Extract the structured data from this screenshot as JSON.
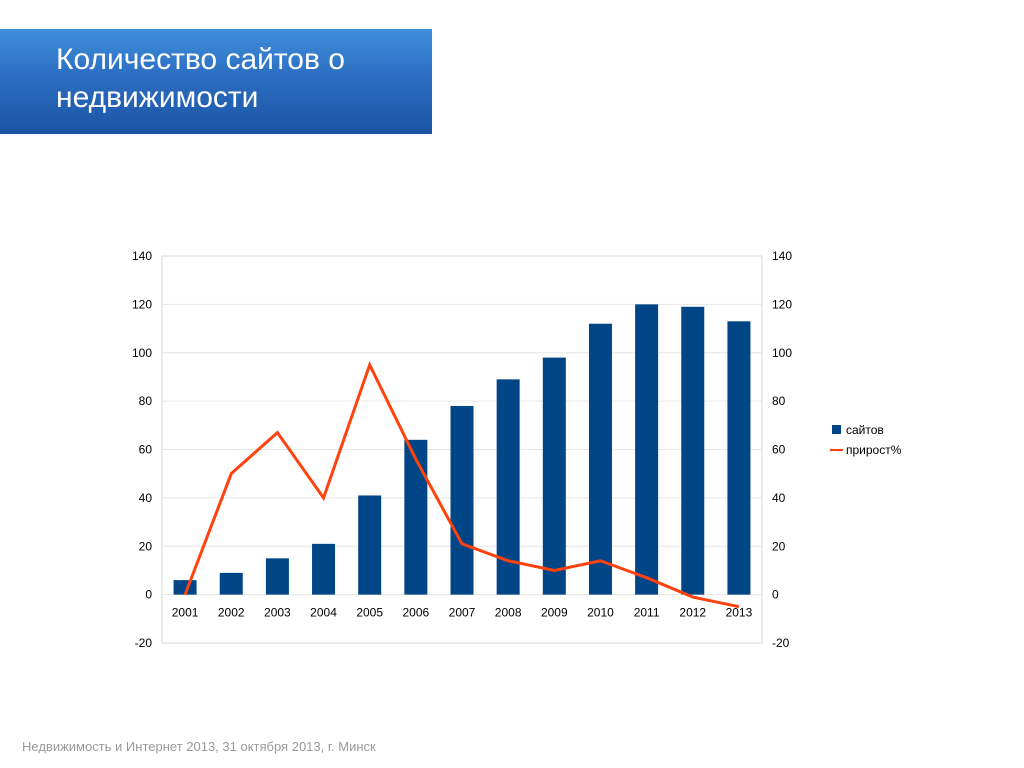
{
  "slide": {
    "title": "Количество сайтов о недвижимости",
    "footer": "Недвижимость и Интернет 2013, 31 октября 2013, г. Минск"
  },
  "colors": {
    "banner": "#2c6ec2",
    "bars": "#004586",
    "line": "#ff420e",
    "grid": "#e6e6e6"
  },
  "chart_data": {
    "type": "bar",
    "title": "",
    "xlabel": "",
    "ylabel": "",
    "categories": [
      "2001",
      "2002",
      "2003",
      "2004",
      "2005",
      "2006",
      "2007",
      "2008",
      "2009",
      "2010",
      "2011",
      "2012",
      "2013"
    ],
    "ylim": [
      -20,
      140
    ],
    "y_ticks": [
      "-20",
      "0",
      "20",
      "40",
      "60",
      "80",
      "100",
      "120",
      "140"
    ],
    "y2_ticks": [
      "-20",
      "0",
      "20",
      "40",
      "60",
      "80",
      "100",
      "120",
      "140"
    ],
    "grid": true,
    "legend_position": "right",
    "series": [
      {
        "name": "сайтов",
        "type": "bar",
        "values": [
          6,
          9,
          15,
          21,
          41,
          64,
          78,
          89,
          98,
          112,
          120,
          119,
          113
        ]
      },
      {
        "name": "прирост%",
        "type": "line",
        "values": [
          0,
          50,
          67,
          40,
          95,
          56,
          21,
          14,
          10,
          14,
          7,
          -1,
          -5
        ]
      }
    ]
  }
}
